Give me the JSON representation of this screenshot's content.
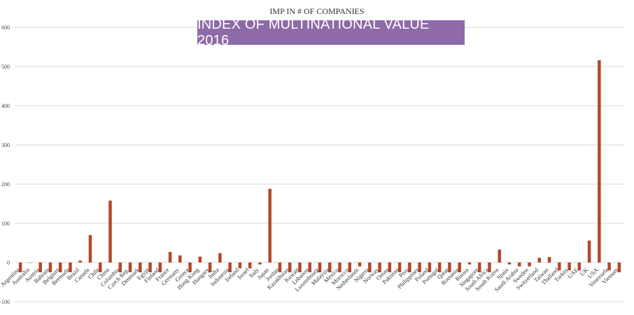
{
  "title": "IMP IN # OF COMPANIES",
  "banner": "INDEX OF MULTINATIONAL VALUE 2016",
  "colors": {
    "bar": "#b5462a",
    "grid": "#d9d9d9",
    "banner_bg": "#8e6aa8"
  },
  "chart_data": {
    "type": "bar",
    "title": "IMP IN # OF COMPANIES",
    "ylim": [
      -100,
      600
    ],
    "yticks": [
      -100,
      0,
      100,
      200,
      300,
      400,
      500,
      600
    ],
    "grid": true,
    "categories": [
      "Argentina",
      "Australia",
      "Austria",
      "Bahrain",
      "Belgium",
      "Bermuda",
      "Brazil",
      "Canada",
      "Chile",
      "China",
      "Colombia",
      "Czech Rep.",
      "Denmark",
      "Egypt",
      "Finland",
      "France",
      "Germany",
      "Greece",
      "Hong Kong",
      "Hungary",
      "India",
      "Indonesia",
      "Ireland",
      "Israel",
      "Italy",
      "Japan",
      "Jordan",
      "Kazakhstan",
      "Kuwait",
      "Lebanon",
      "Luxembourg",
      "Malaysia",
      "Mexico",
      "Morocco",
      "Netherlands",
      "Nigeria",
      "Norway",
      "Oman",
      "Pakistan",
      "Peru",
      "Philippines",
      "Poland",
      "Portugal",
      "Qatar",
      "Romania",
      "Russia",
      "Singapore",
      "South Africa",
      "South Korea",
      "Spain",
      "Saudi Arabia",
      "Sweden",
      "Switzerland",
      "Taiwan",
      "Thailand",
      "Turkey",
      "UAE",
      "UK",
      "USA",
      "Venezuela",
      "Vietnam"
    ],
    "values": [
      -25,
      0,
      -25,
      -25,
      -25,
      -25,
      5,
      70,
      -25,
      158,
      -25,
      -25,
      -25,
      -25,
      -25,
      27,
      18,
      -25,
      15,
      -25,
      24,
      -25,
      -15,
      -15,
      -5,
      188,
      -25,
      -25,
      -25,
      -25,
      -25,
      -25,
      -25,
      -25,
      -10,
      -25,
      -25,
      -25,
      -25,
      -25,
      -25,
      -25,
      -25,
      -25,
      -25,
      -5,
      -25,
      -25,
      33,
      -5,
      -10,
      -10,
      12,
      14,
      -20,
      -20,
      -20,
      56,
      516,
      -20,
      -25
    ]
  }
}
